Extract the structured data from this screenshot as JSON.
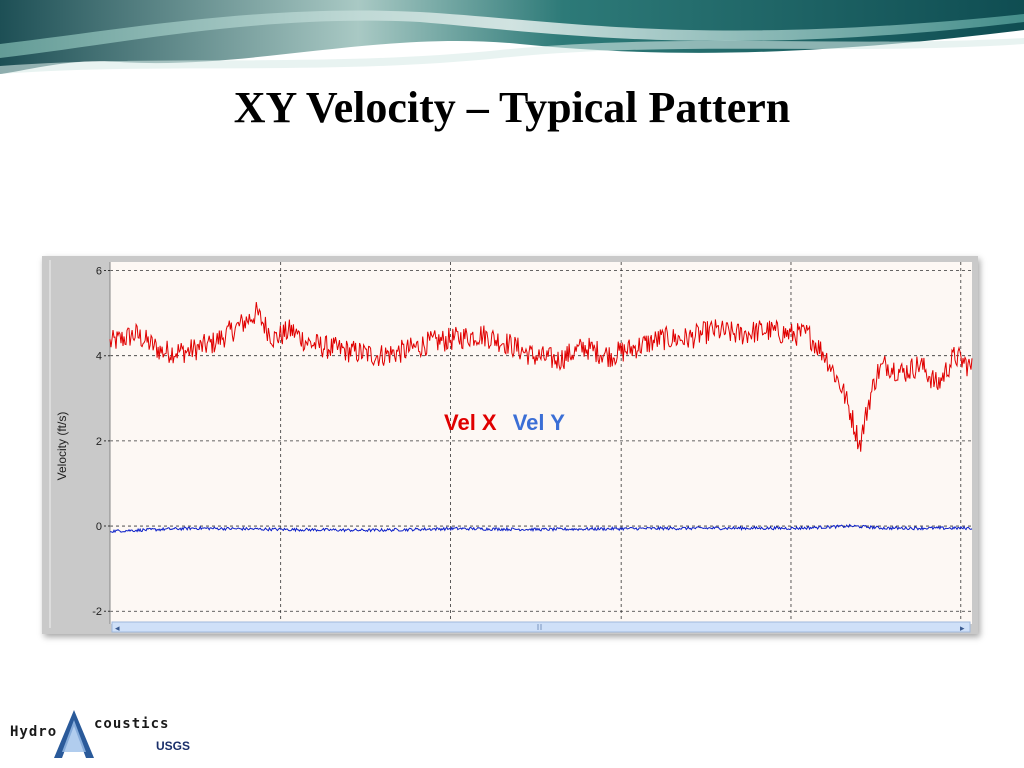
{
  "slide": {
    "title": "XY Velocity – Typical Pattern"
  },
  "logo": {
    "name_left": "Hydro",
    "name_right": "coustics",
    "agency": "USGS"
  },
  "colors": {
    "vel_x": "#e00000",
    "vel_y": "#0a1ec8",
    "legend_x": "#e00000",
    "legend_y": "#3b6fd6",
    "plot_bg": "#fdf8f4",
    "axis_panel": "#c9c9c9",
    "scrollbar": "#cfe0f8"
  },
  "chart_data": {
    "type": "line",
    "title": "",
    "xlabel": "",
    "ylabel": "Velocity (ft/s)",
    "ylim": [
      -2.3,
      6.2
    ],
    "yticks": [
      -2,
      0,
      2,
      4,
      6
    ],
    "xlim": [
      0,
      100
    ],
    "grid": true,
    "legend_position": "center",
    "series": [
      {
        "name": "Vel X",
        "x": [
          0,
          3,
          6,
          9,
          12,
          15,
          17,
          19,
          21,
          23,
          25,
          28,
          31,
          34,
          37,
          40,
          43,
          46,
          49,
          52,
          55,
          58,
          61,
          64,
          67,
          70,
          73,
          76,
          79,
          81,
          83,
          85,
          86,
          87,
          88,
          89,
          90,
          92,
          94,
          96,
          98,
          100
        ],
        "values": [
          4.3,
          4.5,
          4.1,
          4.1,
          4.3,
          4.7,
          5.0,
          4.4,
          4.6,
          4.3,
          4.2,
          4.1,
          4.0,
          4.1,
          4.3,
          4.4,
          4.5,
          4.3,
          4.0,
          3.9,
          4.2,
          4.0,
          4.2,
          4.4,
          4.4,
          4.6,
          4.5,
          4.6,
          4.5,
          4.5,
          4.0,
          3.2,
          2.6,
          1.9,
          2.9,
          3.6,
          3.8,
          3.6,
          3.8,
          3.3,
          4.0,
          3.7
        ]
      },
      {
        "name": "Vel Y",
        "x": [
          0,
          10,
          20,
          30,
          40,
          50,
          60,
          70,
          80,
          86,
          90,
          100
        ],
        "values": [
          -0.12,
          -0.05,
          -0.08,
          -0.1,
          -0.06,
          -0.08,
          -0.06,
          -0.05,
          -0.05,
          0.0,
          -0.05,
          -0.05
        ]
      }
    ]
  }
}
